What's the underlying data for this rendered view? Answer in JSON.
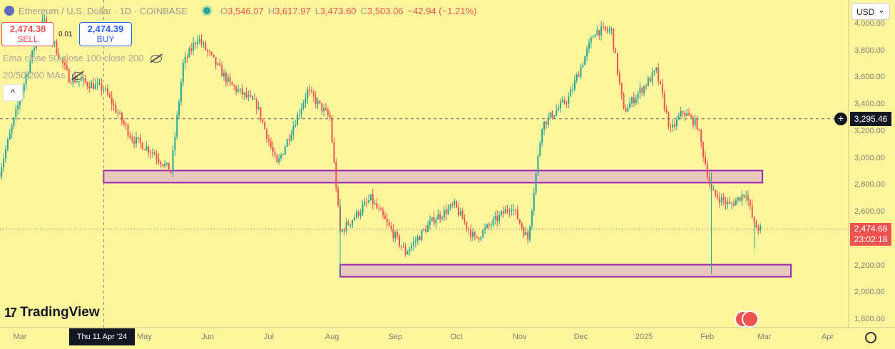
{
  "header": {
    "symbol": "Ethereum / U.S. Dollar · 1D · COINBASE",
    "o_label": "O",
    "o_value": "3,546.07",
    "h_label": "H",
    "h_value": "3,617.97",
    "l_label": "L",
    "l_value": "3,473.60",
    "c_label": "C",
    "c_value": "3,503.06",
    "change": "−42.94 (−1.21%)"
  },
  "trade": {
    "sell_price": "2,474.38",
    "sell_label": "SELL",
    "spread": "0.01",
    "buy_price": "2,474.39",
    "buy_label": "BUY"
  },
  "indicators": {
    "line1": "Ema close 50 close 100 close 200",
    "line2": "20/50/200 MAs"
  },
  "currency": "USD",
  "brand": "TradingView",
  "crosshair": {
    "price": "3,295.46",
    "date": "Thu 11 Apr '24"
  },
  "last_price": {
    "price": "2,474.68",
    "countdown": "23:02:18"
  },
  "colors": {
    "background": "#fff59d",
    "up": "#26a69a",
    "down": "#ef5350",
    "zone_fill": "#e8c8bc",
    "zone_border": "#9c27b0"
  },
  "chart_data": {
    "type": "candlestick",
    "y_axis": {
      "ticks": [
        4000,
        3800,
        3600,
        3400,
        3200,
        3000,
        2800,
        2600,
        2400,
        2200,
        2000,
        1800
      ],
      "tick_labels": [
        "4,000.00",
        "3,800.00",
        "3,600.00",
        "3,400.00",
        "3,200.00",
        "3,000.00",
        "2,800.00",
        "2,600.00",
        "2,400.00",
        "2,200.00",
        "2,000.00",
        "1,800.00"
      ],
      "range": [
        1760,
        4080
      ]
    },
    "x_axis": {
      "labels": [
        "Mar",
        "May",
        "Jun",
        "Jul",
        "Aug",
        "Sep",
        "Oct",
        "Nov",
        "Dec",
        "2025",
        "Feb",
        "Mar",
        "Apr"
      ],
      "dates": [
        "2024-03-01",
        "2024-05-01",
        "2024-06-01",
        "2024-07-01",
        "2024-08-01",
        "2024-09-01",
        "2024-10-01",
        "2024-11-01",
        "2024-12-01",
        "2025-01-01",
        "2025-02-01",
        "2025-03-01",
        "2025-04-01"
      ]
    },
    "current_price": 2474.68,
    "crosshair_price": 3295.46,
    "crosshair_date": "2024-04-11",
    "zones": [
      {
        "from": "2024-04-11",
        "to": "2025-02-28",
        "low": 2820,
        "high": 2910
      },
      {
        "from": "2024-08-05",
        "to": "2025-03-14",
        "low": 2120,
        "high": 2210
      }
    ],
    "monthly_path": [
      {
        "date": "2024-02-20",
        "price": 2900
      },
      {
        "date": "2024-03-12",
        "price": 4050
      },
      {
        "date": "2024-03-25",
        "price": 3600
      },
      {
        "date": "2024-04-11",
        "price": 3520
      },
      {
        "date": "2024-04-25",
        "price": 3150
      },
      {
        "date": "2024-05-05",
        "price": 3050
      },
      {
        "date": "2024-05-14",
        "price": 2900
      },
      {
        "date": "2024-05-20",
        "price": 3700
      },
      {
        "date": "2024-05-27",
        "price": 3900
      },
      {
        "date": "2024-06-12",
        "price": 3550
      },
      {
        "date": "2024-06-25",
        "price": 3400
      },
      {
        "date": "2024-07-05",
        "price": 2950
      },
      {
        "date": "2024-07-20",
        "price": 3500
      },
      {
        "date": "2024-07-31",
        "price": 3300
      },
      {
        "date": "2024-08-05",
        "price": 2450
      },
      {
        "date": "2024-08-20",
        "price": 2700
      },
      {
        "date": "2024-09-06",
        "price": 2300
      },
      {
        "date": "2024-09-20",
        "price": 2550
      },
      {
        "date": "2024-09-30",
        "price": 2650
      },
      {
        "date": "2024-10-10",
        "price": 2400
      },
      {
        "date": "2024-10-28",
        "price": 2650
      },
      {
        "date": "2024-11-05",
        "price": 2400
      },
      {
        "date": "2024-11-12",
        "price": 3250
      },
      {
        "date": "2024-11-25",
        "price": 3450
      },
      {
        "date": "2024-12-08",
        "price": 3950
      },
      {
        "date": "2024-12-16",
        "price": 3950
      },
      {
        "date": "2024-12-22",
        "price": 3350
      },
      {
        "date": "2025-01-07",
        "price": 3650
      },
      {
        "date": "2025-01-14",
        "price": 3200
      },
      {
        "date": "2025-01-20",
        "price": 3350
      },
      {
        "date": "2025-01-27",
        "price": 3250
      },
      {
        "date": "2025-02-03",
        "price": 2750
      },
      {
        "date": "2025-02-12",
        "price": 2650
      },
      {
        "date": "2025-02-20",
        "price": 2750
      },
      {
        "date": "2025-02-24",
        "price": 2500
      },
      {
        "date": "2025-02-27",
        "price": 2474.68
      }
    ]
  }
}
